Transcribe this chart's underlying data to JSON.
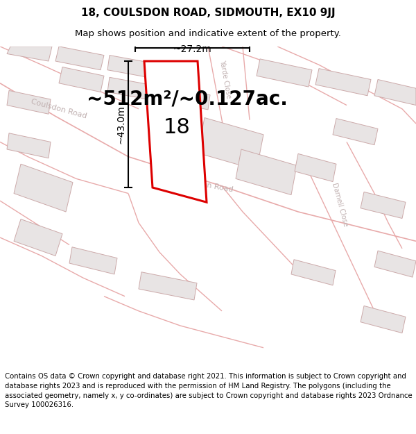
{
  "title_line1": "18, COULSDON ROAD, SIDMOUTH, EX10 9JJ",
  "title_line2": "Map shows position and indicative extent of the property.",
  "footer_text": "Contains OS data © Crown copyright and database right 2021. This information is subject to Crown copyright and database rights 2023 and is reproduced with the permission of HM Land Registry. The polygons (including the associated geometry, namely x, y co-ordinates) are subject to Crown copyright and database rights 2023 Ordnance Survey 100026316.",
  "area_text": "~512m²/~0.127ac.",
  "label_number": "18",
  "dim_height": "~43.0m",
  "dim_width": "~27.2m",
  "map_bg": "#f8f6f6",
  "building_fill": "#e8e4e4",
  "building_edge": "#ccaaaa",
  "property_fill": "#ffffff",
  "property_edge": "#dd0000",
  "road_line": "#e8aaaa",
  "street_label_color": "#c0b0b0",
  "title_fontsize": 11,
  "subtitle_fontsize": 9.5,
  "footer_fontsize": 7.3,
  "area_fontsize": 20,
  "label_fontsize": 22,
  "dim_fontsize": 10,
  "street_fontsize": 8
}
